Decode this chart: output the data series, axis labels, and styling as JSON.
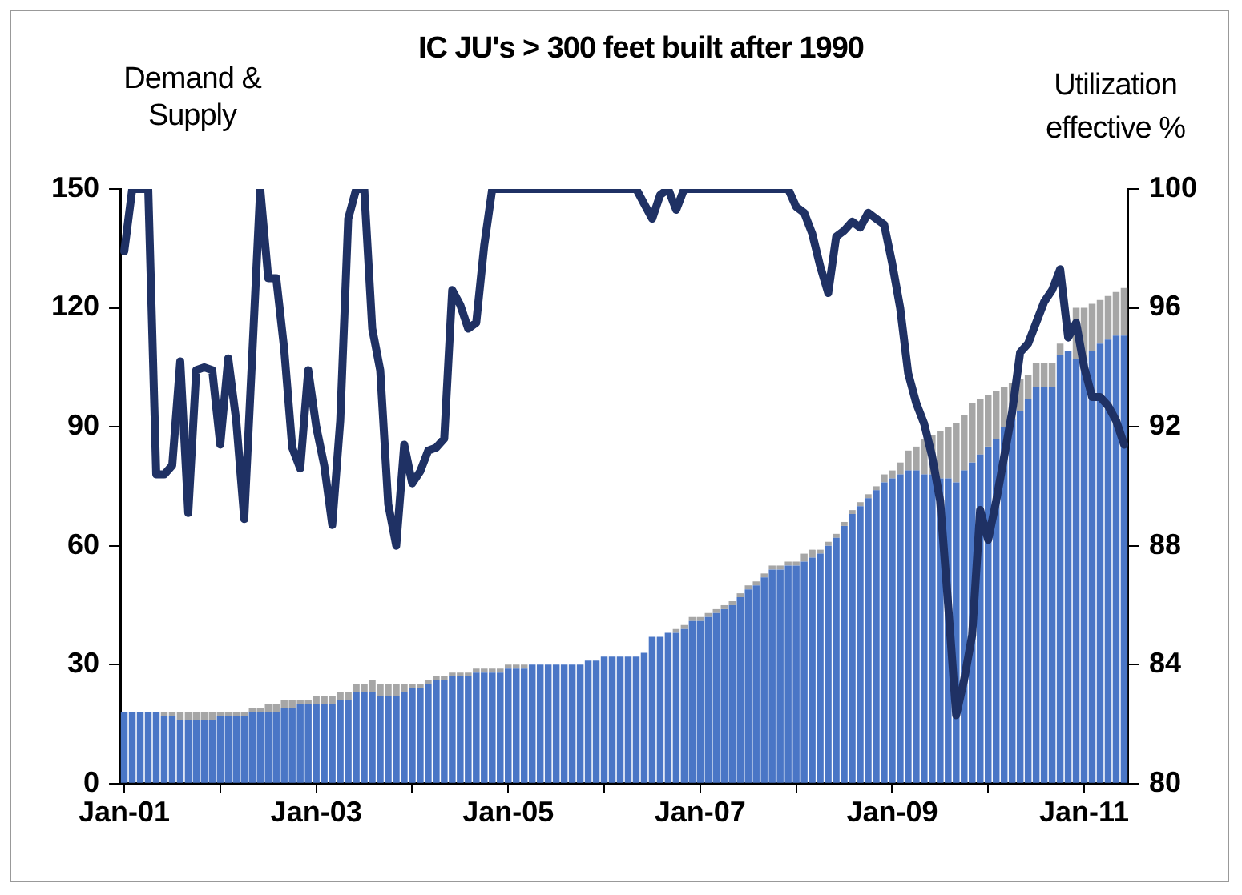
{
  "chart_data": {
    "type": "bar",
    "title": "IC JU's > 300 feet built  after 1990",
    "ylabel": "Demand & Supply",
    "y2label": "Utilization effective %",
    "categories": [
      "Jan-01",
      null,
      null,
      null,
      null,
      null,
      null,
      null,
      null,
      null,
      null,
      null,
      null,
      null,
      null,
      null,
      null,
      null,
      null,
      null,
      null,
      null,
      null,
      null,
      "Jan-03",
      null,
      null,
      null,
      null,
      null,
      null,
      null,
      null,
      null,
      null,
      null,
      null,
      null,
      null,
      null,
      null,
      null,
      null,
      null,
      null,
      null,
      null,
      null,
      "Jan-05",
      null,
      null,
      null,
      null,
      null,
      null,
      null,
      null,
      null,
      null,
      null,
      null,
      null,
      null,
      null,
      null,
      null,
      null,
      null,
      null,
      null,
      null,
      null,
      "Jan-07",
      null,
      null,
      null,
      null,
      null,
      null,
      null,
      null,
      null,
      null,
      null,
      null,
      null,
      null,
      null,
      null,
      null,
      null,
      null,
      null,
      null,
      null,
      null,
      "Jan-09",
      null,
      null,
      null,
      null,
      null,
      null,
      null,
      null,
      null,
      null,
      null,
      null,
      null,
      null,
      null,
      null,
      null,
      null,
      null,
      null,
      null,
      null,
      null,
      "Jan-11",
      null,
      null,
      null,
      null,
      null
    ],
    "stacked": true,
    "series": [
      {
        "color": "#4a76c6",
        "values": [
          18,
          18,
          18,
          18,
          18,
          17,
          17,
          16,
          16,
          16,
          16,
          16,
          17,
          17,
          17,
          17,
          18,
          18,
          18,
          18,
          19,
          19,
          20,
          20,
          20,
          20,
          20,
          21,
          21,
          23,
          23,
          23,
          22,
          22,
          22,
          23,
          24,
          24,
          25,
          26,
          26,
          27,
          27,
          27,
          28,
          28,
          28,
          28,
          29,
          29,
          29,
          30,
          30,
          30,
          30,
          30,
          30,
          30,
          31,
          31,
          32,
          32,
          32,
          32,
          32,
          33,
          37,
          37,
          38,
          38,
          39,
          41,
          41,
          42,
          43,
          44,
          45,
          47,
          49,
          50,
          52,
          54,
          54,
          55,
          55,
          56,
          57,
          58,
          60,
          62,
          65,
          68,
          70,
          72,
          74,
          76,
          77,
          78,
          79,
          79,
          78,
          78,
          77,
          77,
          76,
          79,
          81,
          83,
          85,
          87,
          90,
          92,
          94,
          97,
          100,
          100,
          100,
          108,
          109,
          107,
          107,
          109,
          111,
          112,
          113,
          113
        ]
      },
      {
        "color": "#a6a6a6",
        "values": [
          0,
          0,
          0,
          0,
          0,
          1,
          1,
          2,
          2,
          2,
          2,
          2,
          1,
          1,
          1,
          1,
          1,
          1,
          2,
          2,
          2,
          2,
          1,
          1,
          2,
          2,
          2,
          2,
          2,
          2,
          2,
          3,
          3,
          3,
          3,
          2,
          1,
          1,
          1,
          1,
          1,
          1,
          1,
          1,
          1,
          1,
          1,
          1,
          1,
          1,
          1,
          0,
          0,
          0,
          0,
          0,
          0,
          0,
          0,
          0,
          0,
          0,
          0,
          0,
          0,
          0,
          0,
          0,
          0,
          1,
          1,
          1,
          1,
          1,
          1,
          1,
          1,
          1,
          1,
          1,
          1,
          1,
          1,
          1,
          1,
          2,
          2,
          1,
          1,
          1,
          1,
          1,
          1,
          1,
          1,
          2,
          2,
          3,
          5,
          6,
          9,
          10,
          12,
          13,
          15,
          14,
          15,
          14,
          13,
          12,
          10,
          9,
          8,
          6,
          6,
          6,
          6,
          3,
          null,
          13,
          13,
          12,
          11,
          11,
          11,
          12
        ]
      },
      {
        "type": "line",
        "axis": "y2",
        "color": "#1f3164",
        "values": [
          97.9,
          100,
          100,
          100,
          90.4,
          90.4,
          90.7,
          94.2,
          89.1,
          93.9,
          94.0,
          93.9,
          91.4,
          94.3,
          92.2,
          88.9,
          94.4,
          100,
          97.0,
          97.0,
          94.6,
          91.3,
          90.6,
          93.9,
          92.0,
          90.7,
          88.7,
          92.2,
          99.0,
          100,
          100,
          95.3,
          93.9,
          89.4,
          88.0,
          91.4,
          90.1,
          90.5,
          91.2,
          91.3,
          91.6,
          96.6,
          96.1,
          95.3,
          95.5,
          98.1,
          100,
          100,
          100,
          100,
          100,
          100,
          100,
          100,
          100,
          100,
          100,
          100,
          100,
          100,
          100,
          100,
          100,
          100,
          100,
          99.5,
          99.0,
          99.8,
          100,
          99.3,
          100,
          100,
          100,
          100,
          100,
          100,
          100,
          100,
          100,
          100,
          100,
          100,
          100,
          100,
          99.4,
          99.2,
          98.5,
          97.4,
          96.5,
          98.4,
          98.6,
          98.9,
          98.7,
          99.2,
          99.0,
          98.8,
          97.5,
          96.0,
          93.8,
          92.8,
          92.1,
          91.0,
          89.5,
          86.0,
          82.3,
          83.5,
          85.0,
          89.2,
          88.2,
          89.5,
          91.0,
          92.5,
          94.5,
          94.8,
          95.5,
          96.2,
          96.6,
          97.3,
          95.0,
          95.5,
          94.0,
          93.0,
          93.0,
          92.7,
          92.2,
          91.4
        ]
      }
    ],
    "ylim": [
      0,
      150
    ],
    "yticks": [
      0,
      30,
      60,
      90,
      120,
      150
    ],
    "y2lim": [
      80,
      100
    ],
    "y2ticks": [
      80,
      84,
      88,
      92,
      96,
      100
    ],
    "grid": false,
    "legend": false,
    "marker": "none",
    "line_style": "solid"
  }
}
